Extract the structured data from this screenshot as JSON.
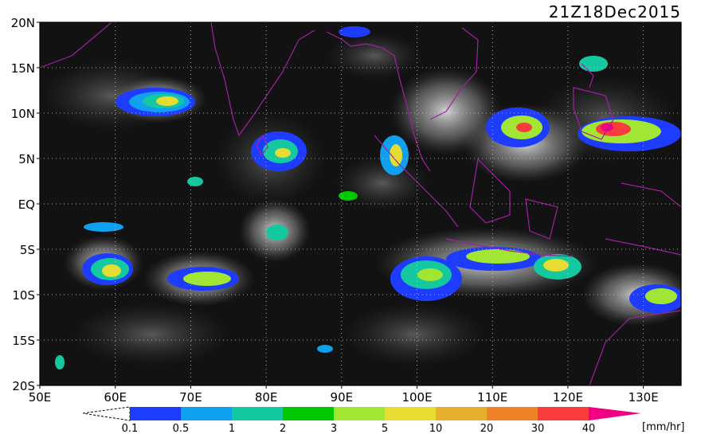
{
  "map": {
    "timestamp": "21Z18Dec2015",
    "lat_labels": [
      "20N",
      "15N",
      "10N",
      "5N",
      "EQ",
      "5S",
      "10S",
      "15S",
      "20S"
    ],
    "lon_labels": [
      "50E",
      "60E",
      "70E",
      "80E",
      "90E",
      "100E",
      "110E",
      "120E",
      "130E"
    ],
    "extent": {
      "lon": [
        50,
        135
      ],
      "lat": [
        -20,
        20
      ]
    }
  },
  "colorbar": {
    "unit": "[mm/hr]",
    "ticks": [
      "0.1",
      "0.5",
      "1",
      "2",
      "3",
      "5",
      "10",
      "20",
      "30",
      "40"
    ],
    "colors": [
      "#1e3cff",
      "#0fa0f0",
      "#14c8a0",
      "#00c800",
      "#a0e632",
      "#e6dc32",
      "#e6af2d",
      "#f08228",
      "#fa3c3c",
      "#f00082"
    ]
  },
  "colors": {
    "background": "#121212",
    "coastline": "#a020a0",
    "grid": "#cfcfcf"
  }
}
